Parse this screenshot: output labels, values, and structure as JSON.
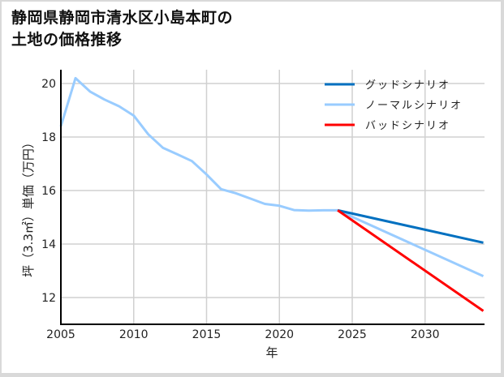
{
  "title_lines": [
    "静岡県静岡市清水区小島本町の",
    "土地の価格推移"
  ],
  "chart_data": {
    "type": "line",
    "title": "静岡県静岡市清水区小島本町の土地の価格推移",
    "xlabel": "年",
    "ylabel": "坪（3.3㎡）単価（万円）",
    "xlim": [
      2005,
      2034
    ],
    "ylim": [
      11.1,
      20.5
    ],
    "x_ticks": [
      2005,
      2010,
      2015,
      2020,
      2025,
      2030
    ],
    "y_ticks": [
      12,
      14,
      16,
      18,
      20
    ],
    "grid": true,
    "legend_position": "upper right",
    "series": [
      {
        "name": "ノーマルシナリオ",
        "color": "#99ccff",
        "x": [
          2005,
          2006,
          2007,
          2008,
          2009,
          2010,
          2011,
          2012,
          2013,
          2014,
          2015,
          2016,
          2017,
          2018,
          2019,
          2020,
          2021,
          2022,
          2023,
          2024,
          2034
        ],
        "values": [
          18.4,
          20.2,
          19.7,
          19.4,
          19.15,
          18.8,
          18.1,
          17.6,
          17.35,
          17.1,
          16.6,
          16.05,
          15.9,
          15.7,
          15.5,
          15.43,
          15.27,
          15.25,
          15.26,
          15.26,
          12.8
        ]
      },
      {
        "name": "グッドシナリオ",
        "color": "#0070c0",
        "x": [
          2024,
          2034
        ],
        "values": [
          15.26,
          14.05
        ]
      },
      {
        "name": "バッドシナリオ",
        "color": "#ff0000",
        "x": [
          2024,
          2034
        ],
        "values": [
          15.26,
          11.5
        ]
      }
    ]
  },
  "legend": [
    {
      "label": "グッドシナリオ",
      "color": "#0070c0"
    },
    {
      "label": "ノーマルシナリオ",
      "color": "#99ccff"
    },
    {
      "label": "バッドシナリオ",
      "color": "#ff0000"
    }
  ]
}
